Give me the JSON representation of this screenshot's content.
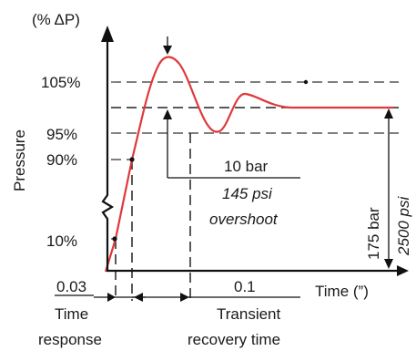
{
  "y_unit": "(% ΔP)",
  "y_axis_label": "Pressure",
  "x_axis_label": "Time (”)",
  "y_levels": {
    "overshoot_band": "105%",
    "undershoot_band": "95%",
    "ninety": "90%",
    "ten": "10%"
  },
  "times": {
    "response": "0.03",
    "recovery": "0.1"
  },
  "overshoot_label": {
    "bar": "10 bar",
    "psi": "145 psi",
    "word": "overshoot"
  },
  "final_pressure": {
    "bar": "175 bar",
    "psi": "2500 psi"
  },
  "captions": {
    "time_response_line1": "Time",
    "time_response_line2": "response",
    "transient_line1": "Transient",
    "transient_line2": "recovery time"
  },
  "colors": {
    "curve": "#e0383b",
    "axes": "#111111",
    "guides": "#555555"
  }
}
